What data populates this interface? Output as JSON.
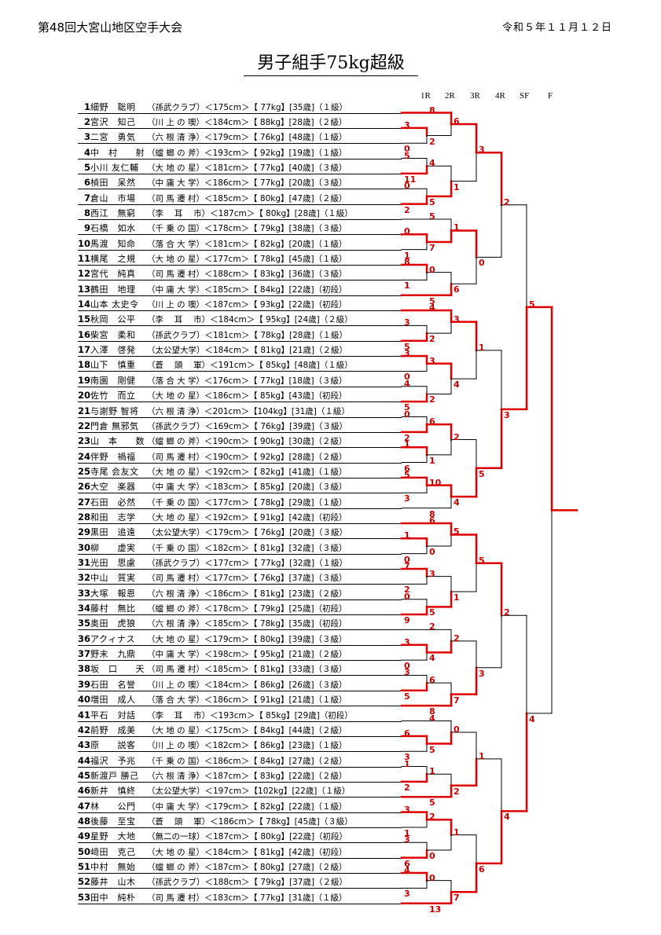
{
  "header": {
    "tournament": "第48回大宮山地区空手大会",
    "date": "令和５年１１月１２日",
    "title": "男子組手75kg超級"
  },
  "rounds": [
    "1R",
    "2R",
    "3R",
    "4R",
    "SF",
    "F"
  ],
  "colors": {
    "win_line": "#e00000",
    "line": "#000000",
    "score": "#cc0000"
  },
  "players": [
    {
      "no": "1",
      "name": "細野　聡明",
      "info": "（孫武クラブ）＜175cm＞【 77kg】[35歳]（１級）"
    },
    {
      "no": "2",
      "name": "宮沢　知己",
      "info": "（川 上 の 噢）＜184cm＞【 88kg】[28歳]（２級）"
    },
    {
      "no": "3",
      "name": "二宮　勇気",
      "info": "（六 根 清 浄）＜179cm＞【 76kg】[48歳]（１級）"
    },
    {
      "no": "4",
      "name": "中　村　　射",
      "info": "（蟷 螂 の 斧）＜193cm＞【 92kg】[19歳]（１級）"
    },
    {
      "no": "5",
      "name": "小川 友仁輔",
      "info": "（大 地 の 星）＜181cm＞【 77kg】[40歳]（３級）"
    },
    {
      "no": "6",
      "name": "楨田　呆然",
      "info": "（中 庸 大 学）＜186cm＞【 77kg】[20歳]（３級）"
    },
    {
      "no": "7",
      "name": "倉山　市場",
      "info": "（司 馬 遷 村）＜185cm＞【 80kg】[47歳]（２級）"
    },
    {
      "no": "8",
      "name": "西江　無窮",
      "info": "（李　 耳　 市）＜187cm＞【 80kg】[28歳]（１級）"
    },
    {
      "no": "9",
      "name": "石橋　如水",
      "info": "（千 乗 の 国）＜178cm＞【 79kg】[38歳]（３級）"
    },
    {
      "no": "10",
      "name": "馬渡　知命",
      "info": "（落 合 大 学）＜181cm＞【 82kg】[20歳]（１級）"
    },
    {
      "no": "11",
      "name": "横尾　之規",
      "info": "（大 地 の 星）＜177cm＞【 78kg】[45歳]（１級）"
    },
    {
      "no": "12",
      "name": "宮代　純真",
      "info": "（司 馬 遷 村）＜188cm＞【 83kg】[36歳]（３級）"
    },
    {
      "no": "13",
      "name": "鶴田　地理",
      "info": "（中 庸 大 学）＜185cm＞【 84kg】[22歳]（初段）"
    },
    {
      "no": "14",
      "name": "山本 太史令",
      "info": "（川 上 の 噢）＜187cm＞【 93kg】[22歳]（初段）"
    },
    {
      "no": "15",
      "name": "秋岡　公平",
      "info": "（李　 耳　 市）＜184cm＞【 95kg】[24歳]（２級）"
    },
    {
      "no": "16",
      "name": "柴宮　柔和",
      "info": "（孫武クラブ）＜181cm＞【 78kg】[28歳]（１級）"
    },
    {
      "no": "17",
      "name": "入澤　啓発",
      "info": "（太公望大学）＜184cm＞【 81kg】[21歳]（２級）"
    },
    {
      "no": "18",
      "name": "山下　慎重",
      "info": "（蒼　 頭　 軍）＜191cm＞【 85kg】[48歳]（１級）"
    },
    {
      "no": "19",
      "name": "南園　剛健",
      "info": "（落 合 大 学）＜176cm＞【 77kg】[18歳]（３級）"
    },
    {
      "no": "20",
      "name": "佐竹　而立",
      "info": "（大 地 の 星）＜186cm＞【 85kg】[43歳]（初段）"
    },
    {
      "no": "21",
      "name": "与謝野 智将",
      "info": "（六 根 清 浄）＜201cm＞【104kg】[31歳]（１級）"
    },
    {
      "no": "22",
      "name": "門倉 無邪気",
      "info": "（孫武クラブ）＜169cm＞【 76kg】[39歳]（３級）"
    },
    {
      "no": "23",
      "name": "山　本　　数",
      "info": "（蟷 螂 の 斧）＜190cm＞【 90kg】[30歳]（２級）"
    },
    {
      "no": "24",
      "name": "伴野　禍福",
      "info": "（司 馬 遷 村）＜190cm＞【 92kg】[28歳]（２級）"
    },
    {
      "no": "25",
      "name": "寺尾 会友文",
      "info": "（大 地 の 星）＜192cm＞【 82kg】[41歳]（１級）"
    },
    {
      "no": "26",
      "name": "大空　楽器",
      "info": "（中 庸 大 学）＜183cm＞【 85kg】[20歳]（３級）"
    },
    {
      "no": "27",
      "name": "石田　必然",
      "info": "（千 乗 の 国）＜177cm＞【 78kg】[29歳]（１級）"
    },
    {
      "no": "28",
      "name": "和田　志学",
      "info": "（大 地 の 星）＜192cm＞【 91kg】[42歳]（初段）"
    },
    {
      "no": "29",
      "name": "黒田　追遠",
      "info": "（太公望大学）＜179cm＞【 76kg】[20歳]（３級）"
    },
    {
      "no": "30",
      "name": "柳　　虚実",
      "info": "（千 乗 の 国）＜182cm＞【 81kg】[32歳]（３級）"
    },
    {
      "no": "31",
      "name": "光田　思慮",
      "info": "（孫武クラブ）＜177cm＞【 77kg】[32歳]（１級）"
    },
    {
      "no": "32",
      "name": "中山　質実",
      "info": "（司 馬 遷 村）＜177cm＞【 76kg】[37歳]（３級）"
    },
    {
      "no": "33",
      "name": "大塚　報恩",
      "info": "（六 根 清 浄）＜186cm＞【 81kg】[23歳]（２級）"
    },
    {
      "no": "34",
      "name": "藤村　無比",
      "info": "（蟷 螂 の 斧）＜178cm＞【 79kg】[25歳]（初段）"
    },
    {
      "no": "35",
      "name": "奥田　虎狼",
      "info": "（六 根 清 浄）＜185cm＞【 78kg】[35歳]（初段）"
    },
    {
      "no": "36",
      "name": "アクィナス",
      "info": "（大 地 の 星）＜179cm＞【 80kg】[39歳]（３級）"
    },
    {
      "no": "37",
      "name": "野末　九鼎",
      "info": "（中 庸 大 学）＜198cm＞【 95kg】[21歳]（２級）"
    },
    {
      "no": "38",
      "name": "坂　口　　天",
      "info": "（司 馬 遷 村）＜185cm＞【 81kg】[33歳]（３級）"
    },
    {
      "no": "39",
      "name": "石田　名誉",
      "info": "（川 上 の 噢）＜184cm＞【 86kg】[26歳]（３級）"
    },
    {
      "no": "40",
      "name": "増田　成人",
      "info": "（落 合 大 学）＜186cm＞【 91kg】[21歳]（１級）"
    },
    {
      "no": "41",
      "name": "平石　対話",
      "info": "（李　 耳　 市）＜193cm＞【 85kg】[29歳]（初段）"
    },
    {
      "no": "42",
      "name": "前野　成美",
      "info": "（大 地 の 星）＜175cm＞【 84kg】[44歳]（２級）"
    },
    {
      "no": "43",
      "name": "原　　説客",
      "info": "（川 上 の 噢）＜182cm＞【 86kg】[23歳]（１級）"
    },
    {
      "no": "44",
      "name": "福沢　予兆",
      "info": "（千 乗 の 国）＜186cm＞【 84kg】[27歳]（２級）"
    },
    {
      "no": "45",
      "name": "新渡戸 勝己",
      "info": "（六 根 清 浄）＜187cm＞【 83kg】[22歳]（２級）"
    },
    {
      "no": "46",
      "name": "新井　慎終",
      "info": "（太公望大学）＜197cm＞【102kg】[22歳]（１級）"
    },
    {
      "no": "47",
      "name": "林　　公門",
      "info": "（中 庸 大 学）＜179cm＞【 82kg】[22歳]（１級）"
    },
    {
      "no": "48",
      "name": "後藤　至宝",
      "info": "（蒼　 頭　 軍）＜186cm＞【 78kg】[45歳]（３級）"
    },
    {
      "no": "49",
      "name": "星野　大地",
      "info": "（無二の一球）＜187cm＞【 80kg】[22歳]（初段）"
    },
    {
      "no": "50",
      "name": "﨑田　克己",
      "info": "（大 地 の 星）＜184cm＞【 81kg】[42歳]（初段）"
    },
    {
      "no": "51",
      "name": "中村　無始",
      "info": "（蟷 螂 の 斧）＜187cm＞【 80kg】[27歳]（２級）"
    },
    {
      "no": "52",
      "name": "藤井　山木",
      "info": "（孫武クラブ）＜188cm＞【 79kg】[37歳]（２級）"
    },
    {
      "no": "53",
      "name": "田中　純朴",
      "info": "（司 馬 遷 村）＜183cm＞【 77kg】[31歳]（１級）"
    }
  ],
  "matches": [
    {
      "a": "P2",
      "b": "P3",
      "sa": "3",
      "sb": "0",
      "w": "a"
    },
    {
      "a": "P4",
      "b": "P5",
      "sa": "5",
      "sb": "11",
      "w": "b"
    },
    {
      "a": "P6",
      "b": "P7",
      "sa": "0",
      "sb": "2",
      "w": "b"
    },
    {
      "a": "P9",
      "b": "P10",
      "sa": "0",
      "sb": "1",
      "w": "a"
    },
    {
      "a": "P11",
      "b": "P12",
      "sa": "8",
      "sb": "1",
      "w": "a"
    },
    {
      "a": "P15",
      "b": "P16",
      "sa": "3",
      "sb": "5",
      "w": "b"
    },
    {
      "a": "P17",
      "b": "P18",
      "sa": "3",
      "sb": "0",
      "w": "a"
    },
    {
      "a": "P19",
      "b": "P20",
      "sa": "4",
      "sb": "5",
      "w": "b"
    },
    {
      "a": "P21",
      "b": "P22",
      "sa": "0",
      "sb": "2",
      "w": "b"
    },
    {
      "a": "P23",
      "b": "P24",
      "sa": "1",
      "sb": "6",
      "w": "a"
    },
    {
      "a": "P25",
      "b": "P26",
      "sa": "5",
      "sb": "3",
      "w": "a"
    },
    {
      "a": "P29",
      "b": "P30",
      "sa": "1",
      "sb": "0",
      "w": "a"
    },
    {
      "a": "P31",
      "b": "P32",
      "sa": "7",
      "sb": "2",
      "w": "a"
    },
    {
      "a": "P33",
      "b": "P34",
      "sa": "0",
      "sb": "9",
      "w": "b"
    },
    {
      "a": "P36",
      "b": "P37",
      "sa": "3",
      "sb": "0",
      "w": "a"
    },
    {
      "a": "P38",
      "b": "P39",
      "sa": "3",
      "sb": "5",
      "w": "b"
    },
    {
      "a": "P42",
      "b": "P43",
      "sa": "6",
      "sb": "3",
      "w": "a"
    },
    {
      "a": "P44",
      "b": "P45",
      "sa": "1",
      "sb": "2",
      "w": "b"
    },
    {
      "a": "P47",
      "b": "P48",
      "sa": "3",
      "sb": "1",
      "w": "a"
    },
    {
      "a": "P49",
      "b": "P50",
      "sa": "3",
      "sb": "6",
      "w": "b"
    },
    {
      "a": "P51",
      "b": "P52",
      "sa": "4",
      "sb": "3",
      "w": "a"
    },
    {
      "a": "P1",
      "b": "M1",
      "sa": "8",
      "sb": "2",
      "w": "a"
    },
    {
      "a": "M2",
      "b": "M3",
      "sa": "4",
      "sb": "5",
      "w": "b"
    },
    {
      "a": "P8",
      "b": "M4",
      "sa": "5",
      "sb": "7",
      "w": "b"
    },
    {
      "a": "M5",
      "b": "P13",
      "sa": "0",
      "sb": "5",
      "w": "b"
    },
    {
      "a": "P14",
      "b": "M6",
      "sa": "4",
      "sb": "2",
      "w": "a"
    },
    {
      "a": "M7",
      "b": "M8",
      "sa": "3",
      "sb": "2",
      "w": "a"
    },
    {
      "a": "M9",
      "b": "M10",
      "sa": "6",
      "sb": "1",
      "w": "a"
    },
    {
      "a": "M11",
      "b": "P27",
      "sa": "10",
      "sb": "8",
      "w": "a"
    },
    {
      "a": "P28",
      "b": "M12",
      "sa": "6",
      "sb": "0",
      "w": "a"
    },
    {
      "a": "M13",
      "b": "M14",
      "sa": "3",
      "sb": "5",
      "w": "b"
    },
    {
      "a": "P35",
      "b": "M15",
      "sa": "2",
      "sb": "4",
      "w": "b"
    },
    {
      "a": "M16",
      "b": "P40",
      "sa": "6",
      "sb": "8",
      "w": "b"
    },
    {
      "a": "P41",
      "b": "M17",
      "sa": "4",
      "sb": "5",
      "w": "b"
    },
    {
      "a": "M18",
      "b": "P46",
      "sa": "1",
      "sb": "5",
      "w": "b"
    },
    {
      "a": "M19",
      "b": "M20",
      "sa": "2",
      "sb": "0",
      "w": "a"
    },
    {
      "a": "M21",
      "b": "P53",
      "sa": "0",
      "sb": "13",
      "w": "b"
    },
    {
      "a": "M22",
      "b": "M23",
      "sa": "6",
      "sb": "1",
      "w": "a"
    },
    {
      "a": "M24",
      "b": "M25",
      "sa": "1",
      "sb": "6",
      "w": "a"
    },
    {
      "a": "M26",
      "b": "M27",
      "sa": "3",
      "sb": "4",
      "w": "a"
    },
    {
      "a": "M28",
      "b": "M29",
      "sa": "2",
      "sb": "4",
      "w": "b"
    },
    {
      "a": "M30",
      "b": "M31",
      "sa": "5",
      "sb": "1",
      "w": "a"
    },
    {
      "a": "M32",
      "b": "M33",
      "sa": "2",
      "sb": "7",
      "w": "b"
    },
    {
      "a": "M34",
      "b": "M35",
      "sa": "0",
      "sb": "2",
      "w": "b"
    },
    {
      "a": "M36",
      "b": "M37",
      "sa": "1",
      "sb": "7",
      "w": "b"
    },
    {
      "a": "M38",
      "b": "M39",
      "sa": "3",
      "sb": "0",
      "w": "a"
    },
    {
      "a": "M40",
      "b": "M41",
      "sa": "1",
      "sb": "5",
      "w": "b"
    },
    {
      "a": "M42",
      "b": "M43",
      "sa": "5",
      "sb": "3",
      "w": "a"
    },
    {
      "a": "M44",
      "b": "M45",
      "sa": "1",
      "sb": "6",
      "w": "b"
    },
    {
      "a": "M46",
      "b": "M47",
      "sa": "2",
      "sb": "3",
      "w": "b"
    },
    {
      "a": "M48",
      "b": "M49",
      "sa": "2",
      "sb": "4",
      "w": "b"
    },
    {
      "a": "M50",
      "b": "M51",
      "sa": "5",
      "sb": "4",
      "w": "a"
    }
  ]
}
